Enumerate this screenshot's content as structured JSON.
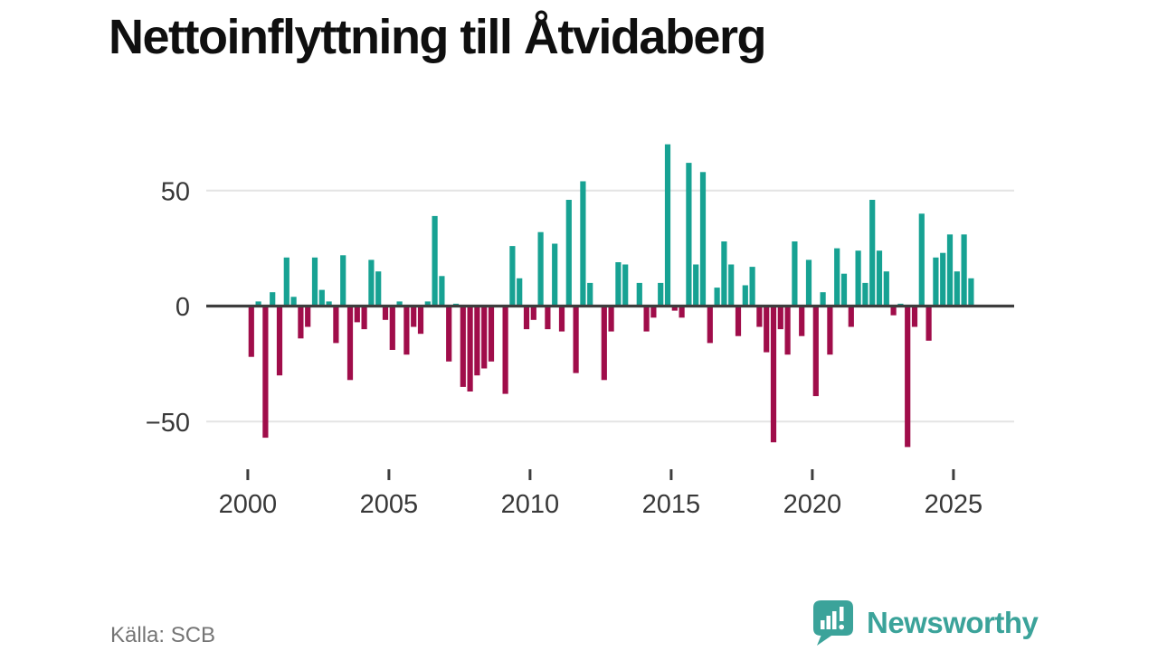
{
  "title": "Nettoinflyttning till Åtvidaberg",
  "source": "Källa: SCB",
  "logo": {
    "text": "Newsworthy"
  },
  "colors": {
    "positive": "#17a293",
    "negative": "#a00d4a",
    "grid": "#e4e4e4",
    "zero_line": "#3d3d3d",
    "tick_label": "#383838",
    "logo_teal": "#3ba39a"
  },
  "chart_data": {
    "type": "bar",
    "title": "Nettoinflyttning till Åtvidaberg",
    "source": "Källa: SCB",
    "x_frequency": "quarterly",
    "x_start": {
      "year": 2000,
      "quarter": 1
    },
    "x_end": {
      "year": 2025,
      "quarter": 3
    },
    "values": [
      -22,
      2,
      -57,
      6,
      -30,
      21,
      4,
      -14,
      -9,
      21,
      7,
      2,
      -16,
      22,
      -32,
      -7,
      -10,
      20,
      15,
      -6,
      -19,
      2,
      -21,
      -9,
      -12,
      2,
      39,
      13,
      -24,
      1,
      -35,
      -37,
      -30,
      -27,
      -24,
      0,
      -38,
      26,
      12,
      -10,
      -6,
      32,
      -10,
      27,
      -11,
      46,
      -29,
      54,
      10,
      0,
      -32,
      -11,
      19,
      18,
      0,
      10,
      -11,
      -5,
      10,
      70,
      -2,
      -5,
      62,
      18,
      58,
      -16,
      8,
      28,
      18,
      -13,
      9,
      17,
      -9,
      -20,
      -59,
      -10,
      -21,
      28,
      -13,
      20,
      -39,
      6,
      -21,
      25,
      14,
      -9,
      24,
      10,
      46,
      24,
      15,
      -4,
      1,
      -61,
      -9,
      40,
      -15,
      21,
      23,
      31,
      15,
      31,
      12
    ],
    "yticks": [
      50,
      0,
      -50
    ],
    "ytick_labels": [
      "50",
      "0",
      "−50"
    ],
    "xtick_years": [
      2000,
      2005,
      2010,
      2015,
      2020,
      2025
    ],
    "xtick_labels": [
      "2000",
      "2005",
      "2010",
      "2015",
      "2020",
      "2025"
    ],
    "ylim": [
      -65,
      75
    ],
    "grid": "horizontal",
    "legend": "none"
  }
}
